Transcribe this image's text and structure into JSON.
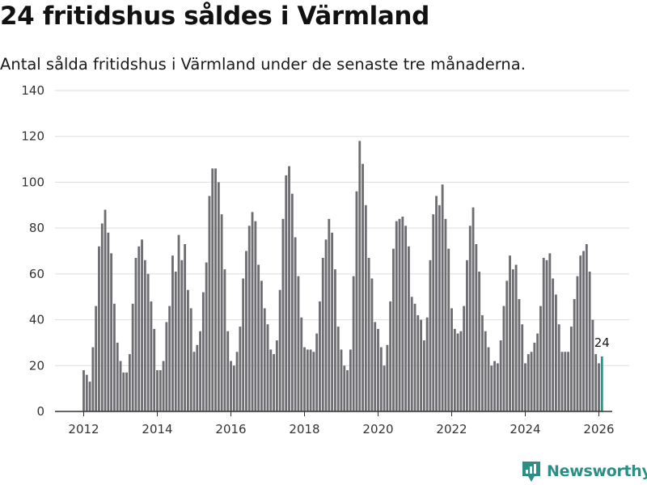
{
  "title": "24 fritidshus såldes i Värmland",
  "subtitle": "Antal sålda fritidshus i Värmland under de senaste tre månaderna.",
  "brand": {
    "name": "Newsworthy",
    "icon": "newsworthy-logo-icon",
    "color": "#2b8f85"
  },
  "chart_data": {
    "type": "bar",
    "grid": true,
    "ylim": [
      0,
      140
    ],
    "y_ticks": [
      "0",
      "20",
      "40",
      "60",
      "80",
      "100",
      "120",
      "140"
    ],
    "x_ticks": [
      "2012",
      "2014",
      "2016",
      "2018",
      "2020",
      "2022",
      "2024",
      "2026"
    ],
    "colors": {
      "bar": "#6e6d72",
      "highlight": "#1f9a8e",
      "grid": "#dddddd",
      "axis": "#333333"
    },
    "highlight_label": "24",
    "series": [
      {
        "start": "2012-01",
        "values": [
          18,
          16,
          13,
          28,
          46,
          72,
          82,
          88,
          78,
          69,
          47,
          30,
          22,
          17,
          17,
          25,
          47,
          67,
          72,
          75,
          66,
          60,
          48,
          36,
          18,
          18,
          22,
          39,
          46,
          68,
          61,
          77,
          66,
          73,
          53,
          45,
          26,
          29,
          35,
          52,
          65,
          94,
          106,
          106,
          100,
          86,
          62,
          35,
          22,
          20,
          26,
          37,
          58,
          70,
          81,
          87,
          83,
          64,
          57,
          45,
          38,
          27,
          25,
          31,
          53,
          84,
          103,
          107,
          95,
          76,
          59,
          41,
          28,
          27,
          27,
          26,
          34,
          48,
          67,
          75,
          84,
          78,
          62,
          37,
          27,
          20,
          18,
          27,
          59,
          96,
          118,
          108,
          90,
          67,
          58,
          39,
          36,
          28,
          20,
          29,
          48,
          71,
          83,
          84,
          85,
          81,
          72,
          50,
          47,
          42,
          40,
          31,
          41,
          66,
          86,
          94,
          90,
          99,
          84,
          71,
          45,
          36,
          34,
          35,
          46,
          66,
          81,
          89,
          73,
          61,
          42,
          35,
          28,
          20,
          22,
          21,
          31,
          46,
          57,
          68,
          62,
          64,
          49,
          38,
          21,
          25,
          26,
          30,
          34,
          46,
          67,
          66,
          69,
          58,
          51,
          38,
          26,
          26,
          26,
          37,
          49,
          59,
          68,
          70,
          73,
          61,
          40,
          25,
          21,
          24
        ]
      }
    ]
  }
}
